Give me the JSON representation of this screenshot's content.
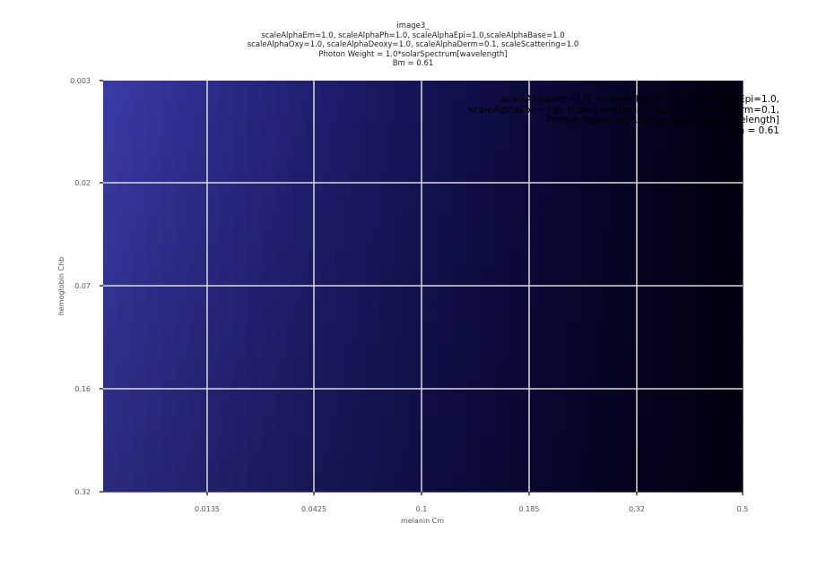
{
  "title_lines": [
    "image3_",
    "scaleAlphaEm=1.0, scaleAlphaPh=1.0, scaleAlphaEpi=1.0,scaleAlphaBase=1.0",
    "scaleAlphaOxy=1.0, scaleAlphaDeoxy=1.0, scaleAlphaDerm=0.1, scaleScattering=1.0",
    "Photon Weight = 1.0*solarSpectrum[wavelength]",
    "Bm = 0.61"
  ],
  "annotation_lines": [
    "scaleAlphaEm=1.0, scaleAlphaPh=1.0, scaleAlphaEpi=1.0,",
    "scaleAlphaOxy=1.0, scaleAlphaDeoxy=1.0, scaleAlphaDerm=0.1,",
    "Photon Weight = 1.0*solarSpectrum[wavelength]",
    "Bm = 0.61"
  ],
  "chart_data": {
    "type": "heatmap",
    "xlabel": "melanin Cm",
    "ylabel": "hemoglobin Chb",
    "x_ticks": [
      "0.0135",
      "0.0425",
      "0.1",
      "0.185",
      "0.32",
      "0.5"
    ],
    "y_ticks": [
      "0.003",
      "0.02",
      "0.07",
      "0.16",
      "0.32"
    ],
    "grid": true,
    "colors": {
      "top_left": "#3c3ca4",
      "bottom_left": "#2c2c80",
      "mid": "#0a0630",
      "right": "#00000f",
      "grid": "#d9d9d9",
      "tick": "#333333"
    }
  }
}
